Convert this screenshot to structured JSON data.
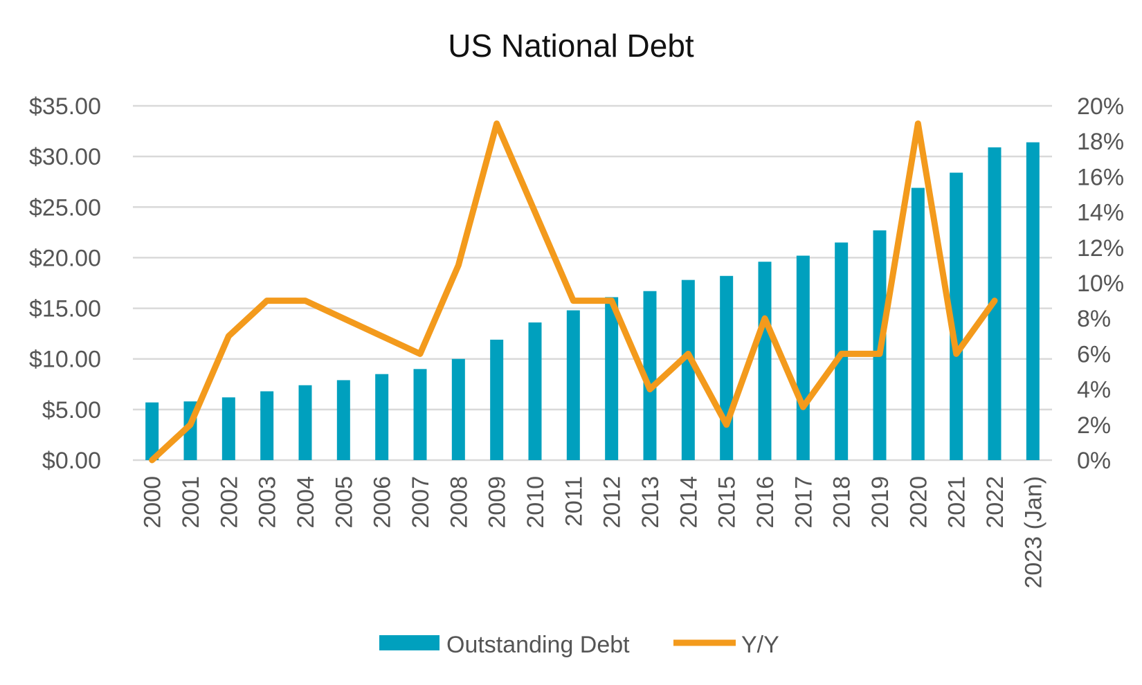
{
  "chart_data": {
    "type": "bar",
    "title": "US National Debt",
    "xlabel": "",
    "ylabel": "",
    "categories": [
      "2000",
      "2001",
      "2002",
      "2003",
      "2004",
      "2005",
      "2006",
      "2007",
      "2008",
      "2009",
      "2010",
      "2011",
      "2012",
      "2013",
      "2014",
      "2015",
      "2016",
      "2017",
      "2018",
      "2019",
      "2020",
      "2021",
      "2022",
      "2023 (Jan)"
    ],
    "series": [
      {
        "name": "Outstanding Debt",
        "type": "bar",
        "axis": "left",
        "color": "#00A0BE",
        "values": [
          5.7,
          5.8,
          6.2,
          6.8,
          7.4,
          7.9,
          8.5,
          9.0,
          10.0,
          11.9,
          13.6,
          14.8,
          16.1,
          16.7,
          17.8,
          18.2,
          19.6,
          20.2,
          21.5,
          22.7,
          26.9,
          28.4,
          30.9,
          31.4
        ]
      },
      {
        "name": "Y/Y",
        "type": "line",
        "axis": "right",
        "color": "#F39A1C",
        "values": [
          0,
          2,
          7,
          9,
          9,
          8,
          7,
          6,
          11,
          19,
          14,
          9,
          9,
          4,
          6,
          2,
          8,
          3,
          6,
          6,
          19,
          6,
          9,
          null
        ]
      }
    ],
    "y_left": {
      "ylim": [
        0,
        35
      ],
      "ticks": [
        0,
        5,
        10,
        15,
        20,
        25,
        30,
        35
      ],
      "tick_labels": [
        "$0.00",
        "$5.00",
        "$10.00",
        "$15.00",
        "$20.00",
        "$25.00",
        "$30.00",
        "$35.00"
      ]
    },
    "y_right": {
      "ylim": [
        0,
        20
      ],
      "ticks": [
        0,
        2,
        4,
        6,
        8,
        10,
        12,
        14,
        16,
        18,
        20
      ],
      "tick_labels": [
        "0%",
        "2%",
        "4%",
        "6%",
        "8%",
        "10%",
        "12%",
        "14%",
        "16%",
        "18%",
        "20%"
      ]
    },
    "grid": true,
    "legend": {
      "position": "bottom",
      "entries": [
        "Outstanding Debt",
        "Y/Y"
      ]
    }
  }
}
